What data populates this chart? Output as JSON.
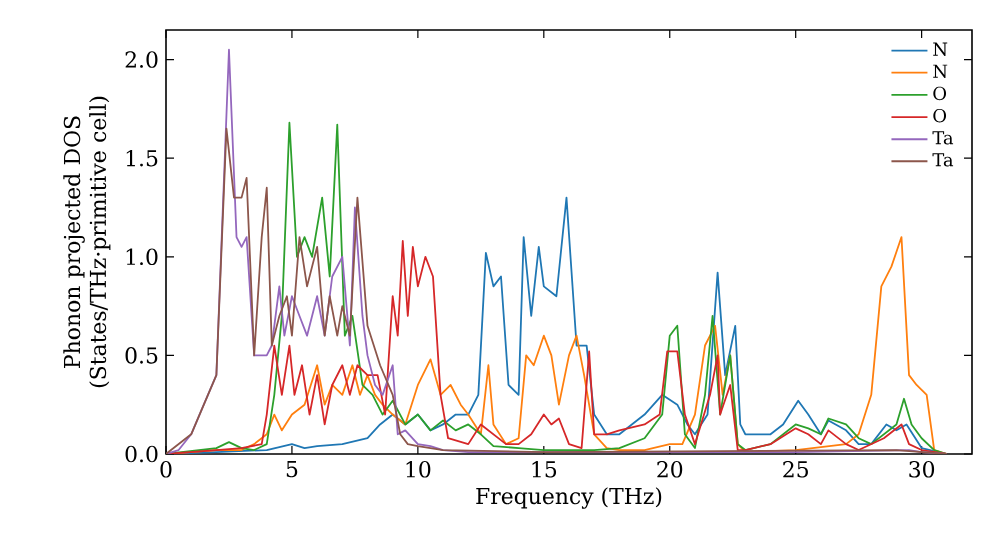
{
  "chart_data": {
    "type": "line",
    "xlabel": "Frequency (THz)",
    "ylabel": "Phonon projected DOS (States/THz·primitive cell)",
    "xlim": [
      0,
      32
    ],
    "ylim": [
      0,
      2.15
    ],
    "xticks": [
      0,
      5,
      10,
      15,
      20,
      25,
      30
    ],
    "yticks": [
      {
        "value": 0,
        "label": "0.0"
      },
      {
        "value": 0.5,
        "label": "0.5"
      },
      {
        "value": 1,
        "label": "1.0"
      },
      {
        "value": 1.5,
        "label": "1.5"
      },
      {
        "value": 2,
        "label": "2.0"
      }
    ],
    "legend": "top right",
    "grid": false,
    "marker": "none",
    "line_style": "solid",
    "series": [
      {
        "name": "N",
        "color": "#1f77b4",
        "x": [
          0,
          2,
          4,
          5,
          5.5,
          6,
          7,
          8,
          8.5,
          9,
          9.5,
          10,
          10.5,
          11,
          11.5,
          12,
          12.4,
          12.7,
          13,
          13.3,
          13.6,
          14,
          14.2,
          14.5,
          14.8,
          15,
          15.5,
          15.9,
          16.3,
          16.7,
          17,
          17.5,
          18,
          19,
          19.7,
          20.3,
          20.7,
          21,
          21.5,
          21.9,
          22.2,
          22.6,
          22.8,
          23,
          24,
          24.5,
          25.1,
          25.5,
          26,
          26.3,
          27,
          27.5,
          28,
          28.6,
          29,
          29.4,
          30,
          31
        ],
        "values": [
          0,
          0.01,
          0.02,
          0.05,
          0.03,
          0.04,
          0.05,
          0.08,
          0.15,
          0.2,
          0.15,
          0.2,
          0.12,
          0.15,
          0.2,
          0.2,
          0.3,
          1.02,
          0.85,
          0.9,
          0.35,
          0.3,
          1.1,
          0.7,
          1.05,
          0.85,
          0.8,
          1.3,
          0.55,
          0.55,
          0.2,
          0.1,
          0.1,
          0.2,
          0.3,
          0.25,
          0.15,
          0.1,
          0.2,
          0.92,
          0.4,
          0.65,
          0.15,
          0.1,
          0.1,
          0.15,
          0.27,
          0.2,
          0.1,
          0.17,
          0.12,
          0.05,
          0.05,
          0.15,
          0.12,
          0.15,
          0.03,
          0
        ]
      },
      {
        "name": "N",
        "color": "#ff7f0e",
        "x": [
          0,
          2,
          3,
          3.5,
          4,
          4.3,
          4.6,
          5,
          5.5,
          6,
          6.3,
          6.6,
          7,
          7.4,
          7.7,
          8,
          8.3,
          8.6,
          9,
          9.5,
          10,
          10.5,
          10.9,
          11.3,
          11.7,
          12,
          12.5,
          12.8,
          13,
          13.5,
          14,
          14.3,
          14.6,
          15,
          15.3,
          15.6,
          16,
          16.3,
          16.6,
          17,
          17.5,
          18,
          19,
          20,
          20.5,
          21,
          21.4,
          21.8,
          22.1,
          22.4,
          22.7,
          23,
          25,
          27,
          27.5,
          28,
          28.4,
          28.8,
          29.2,
          29.5,
          29.8,
          30.2,
          30.5,
          31
        ],
        "values": [
          0,
          0.02,
          0.02,
          0.05,
          0.1,
          0.2,
          0.12,
          0.2,
          0.25,
          0.45,
          0.25,
          0.35,
          0.3,
          0.45,
          0.3,
          0.4,
          0.3,
          0.25,
          0.2,
          0.15,
          0.35,
          0.48,
          0.3,
          0.35,
          0.25,
          0.2,
          0.1,
          0.45,
          0.15,
          0.05,
          0.08,
          0.5,
          0.45,
          0.6,
          0.5,
          0.25,
          0.5,
          0.6,
          0.4,
          0.1,
          0.03,
          0.02,
          0.02,
          0.05,
          0.05,
          0.2,
          0.55,
          0.65,
          0.3,
          0.5,
          0.05,
          0.01,
          0.02,
          0.05,
          0.1,
          0.3,
          0.85,
          0.95,
          1.1,
          0.4,
          0.35,
          0.3,
          0.02,
          0
        ]
      },
      {
        "name": "O",
        "color": "#2ca02c",
        "x": [
          0,
          2,
          2.5,
          3,
          3.5,
          4,
          4.3,
          4.6,
          4.9,
          5.2,
          5.5,
          5.8,
          6.2,
          6.5,
          6.8,
          7.1,
          7.4,
          7.8,
          8.2,
          8.6,
          9,
          9.5,
          10,
          10.5,
          11,
          11.5,
          12,
          12.5,
          13,
          14,
          15,
          16,
          17,
          18,
          19,
          19.7,
          20,
          20.3,
          20.6,
          21,
          21.4,
          21.7,
          22,
          22.4,
          22.7,
          23,
          24,
          25,
          25.5,
          26,
          26.3,
          27,
          27.5,
          28,
          28.5,
          29,
          29.3,
          29.6,
          30,
          30.5,
          31
        ],
        "values": [
          0,
          0.03,
          0.06,
          0.03,
          0.02,
          0.05,
          0.3,
          0.7,
          1.68,
          1,
          1.1,
          1,
          1.3,
          0.9,
          1.67,
          0.6,
          0.7,
          0.35,
          0.3,
          0.2,
          0.27,
          0.15,
          0.2,
          0.12,
          0.17,
          0.12,
          0.15,
          0.1,
          0.04,
          0.03,
          0.02,
          0.02,
          0.02,
          0.03,
          0.08,
          0.2,
          0.6,
          0.65,
          0.1,
          0.03,
          0.3,
          0.7,
          0.2,
          0.5,
          0.05,
          0.02,
          0.05,
          0.15,
          0.13,
          0.1,
          0.18,
          0.15,
          0.08,
          0.05,
          0.1,
          0.15,
          0.28,
          0.15,
          0.08,
          0.02,
          0
        ]
      },
      {
        "name": "O",
        "color": "#d62728",
        "x": [
          0,
          2,
          3,
          3.8,
          4,
          4.3,
          4.6,
          4.9,
          5.1,
          5.4,
          5.7,
          6,
          6.3,
          6.6,
          7,
          7.3,
          7.6,
          8,
          8.4,
          8.7,
          9,
          9.2,
          9.4,
          9.6,
          9.8,
          10,
          10.3,
          10.6,
          10.9,
          11.2,
          12,
          12.5,
          13,
          13.5,
          14,
          14.5,
          15,
          15.3,
          15.6,
          16,
          16.5,
          16.8,
          17,
          17.5,
          18,
          19,
          19.6,
          19.9,
          20.3,
          20.6,
          21,
          21.6,
          21.9,
          22,
          22.4,
          22.7,
          23,
          24,
          25,
          25.5,
          26,
          26.3,
          27,
          27.5,
          28,
          28.5,
          29.2,
          29.5,
          30,
          31
        ],
        "values": [
          0,
          0.02,
          0.03,
          0.05,
          0.2,
          0.55,
          0.3,
          0.55,
          0.3,
          0.45,
          0.2,
          0.4,
          0.15,
          0.35,
          0.45,
          0.3,
          0.45,
          0.4,
          0.4,
          0.2,
          0.8,
          0.6,
          1.08,
          0.7,
          1.05,
          0.85,
          1,
          0.9,
          0.3,
          0.08,
          0.05,
          0.15,
          0.1,
          0.05,
          0.05,
          0.1,
          0.2,
          0.15,
          0.18,
          0.05,
          0.03,
          0.52,
          0.1,
          0.1,
          0.12,
          0.15,
          0.2,
          0.52,
          0.52,
          0.2,
          0.05,
          0.3,
          0.5,
          0.2,
          0.35,
          0.02,
          0.02,
          0.05,
          0.13,
          0.1,
          0.05,
          0.12,
          0.05,
          0.02,
          0.05,
          0.08,
          0.15,
          0.05,
          0.02,
          0
        ]
      },
      {
        "name": "Ta",
        "color": "#9467bd",
        "x": [
          0,
          0.5,
          1,
          1.5,
          2,
          2.5,
          2.8,
          3,
          3.2,
          3.5,
          3.8,
          4,
          4.2,
          4.5,
          4.7,
          5,
          5.3,
          5.6,
          6,
          6.3,
          6.6,
          7,
          7.3,
          7.5,
          7.8,
          8,
          8.3,
          8.6,
          9,
          9.2,
          9.5,
          10,
          10.5,
          11,
          12,
          15,
          20,
          25,
          29.5,
          30,
          31
        ],
        "values": [
          0,
          0.02,
          0.1,
          0.25,
          0.4,
          2.05,
          1.1,
          1.05,
          1.1,
          0.5,
          0.5,
          0.5,
          0.55,
          0.85,
          0.6,
          0.8,
          0.7,
          0.6,
          0.8,
          0.6,
          0.9,
          1,
          0.55,
          1.25,
          0.7,
          0.5,
          0.35,
          0.3,
          0.45,
          0.1,
          0.12,
          0.05,
          0.04,
          0.02,
          0.01,
          0.01,
          0.01,
          0.01,
          0.02,
          0.01,
          0
        ]
      },
      {
        "name": "Ta",
        "color": "#8c564b",
        "x": [
          0,
          1,
          2,
          2.4,
          2.7,
          3,
          3.2,
          3.5,
          3.8,
          4,
          4.2,
          4.5,
          4.8,
          5,
          5.3,
          5.6,
          6,
          6.3,
          6.5,
          6.8,
          7,
          7.3,
          7.6,
          8,
          8.5,
          9,
          9.3,
          9.6,
          10,
          11,
          15,
          29,
          31
        ],
        "values": [
          0,
          0.1,
          0.4,
          1.65,
          1.3,
          1.3,
          1.4,
          0.5,
          1.1,
          1.35,
          0.55,
          0.7,
          0.8,
          0.6,
          1.1,
          0.85,
          1.05,
          0.6,
          0.8,
          0.6,
          0.75,
          0.6,
          1.3,
          0.65,
          0.45,
          0.3,
          0.1,
          0.05,
          0.04,
          0.02,
          0.01,
          0.02,
          0
        ]
      }
    ]
  }
}
